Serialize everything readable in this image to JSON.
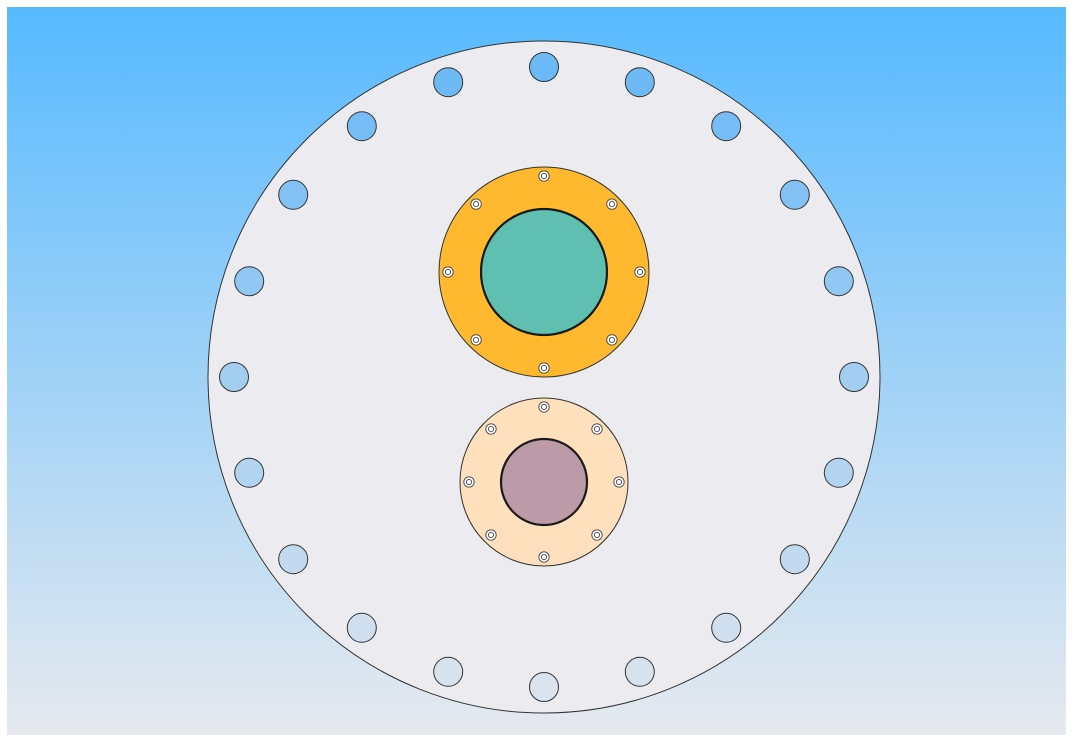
{
  "viewport": {
    "background_top": "#55b9ff",
    "background_bottom": "#e8eaee"
  },
  "flange": {
    "icon": "blind-flange-icon",
    "fill": "#ecebef",
    "stroke": "#333333",
    "bolt_hole_count": 20,
    "bolt_hole_fill": "#66b7f5"
  },
  "nozzle_large": {
    "icon": "nozzle-flange-icon",
    "ring_fill": "#ffb92f",
    "bore_fill": "#5fbfb0",
    "bolt_count": 8
  },
  "nozzle_small": {
    "icon": "nozzle-flange-icon",
    "ring_fill": "#ffe0bc",
    "bore_fill": "#bc9aa8",
    "bolt_count": 8
  }
}
